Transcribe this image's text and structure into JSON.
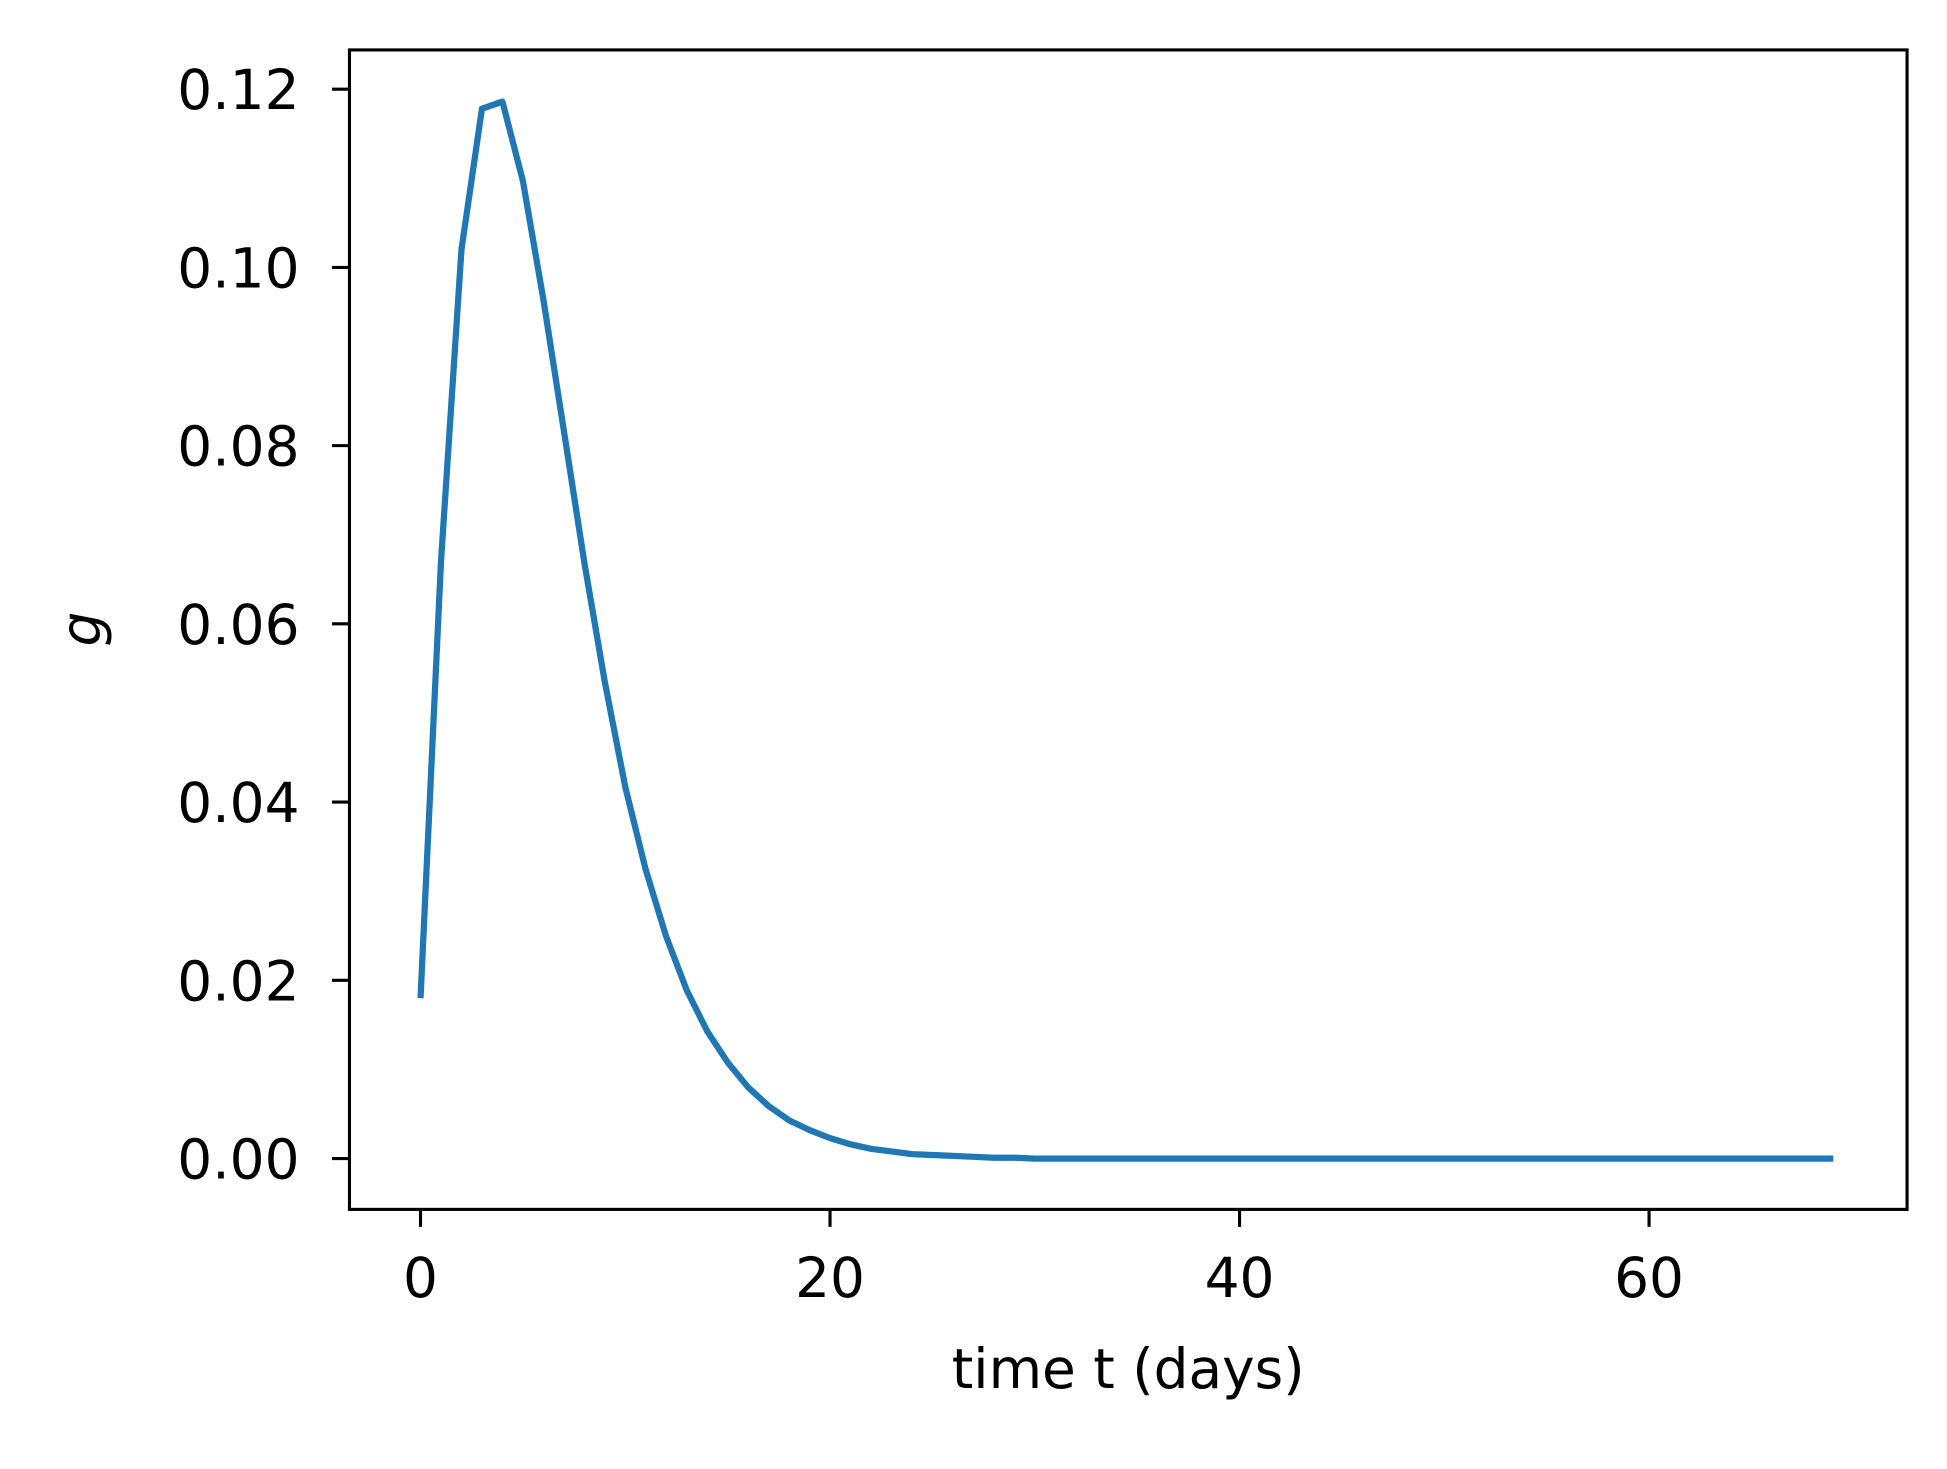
{
  "chart_data": {
    "type": "line",
    "xlabel": "time t (days)",
    "ylabel": "g",
    "color": "#1f77b4",
    "x": [
      0,
      1,
      2,
      3,
      4,
      5,
      6,
      7,
      8,
      9,
      10,
      11,
      12,
      13,
      14,
      15,
      16,
      17,
      18,
      19,
      20,
      21,
      22,
      23,
      24,
      25,
      26,
      27,
      28,
      29,
      30,
      31,
      32,
      33,
      34,
      35,
      36,
      37,
      38,
      39,
      40,
      41,
      42,
      43,
      44,
      45,
      46,
      47,
      48,
      49,
      50,
      51,
      52,
      53,
      54,
      55,
      56,
      57,
      58,
      59,
      60,
      61,
      62,
      63,
      64,
      65,
      66,
      67,
      68,
      69
    ],
    "values": [
      0.018,
      0.067,
      0.102,
      0.1178,
      0.1186,
      0.1097,
      0.0964,
      0.0817,
      0.0669,
      0.0535,
      0.0417,
      0.0324,
      0.0249,
      0.0189,
      0.0143,
      0.0108,
      0.008,
      0.0059,
      0.0043,
      0.0032,
      0.0023,
      0.0016,
      0.0011,
      0.0008,
      0.0005,
      0.0004,
      0.0003,
      0.0002,
      0.0001,
      0.0001,
      0,
      0,
      0,
      0,
      0,
      0,
      0,
      0,
      0,
      0,
      0,
      0,
      0,
      0,
      0,
      0,
      0,
      0,
      0,
      0,
      0,
      0,
      0,
      0,
      0,
      0,
      0,
      0,
      0,
      0,
      0,
      0,
      0,
      0,
      0,
      0,
      0,
      0,
      0,
      0
    ],
    "xlim": [
      -3.47,
      72.6
    ],
    "ylim": [
      -0.0057,
      0.1244
    ],
    "xticks": [
      0,
      20,
      40,
      60
    ],
    "yticks": [
      {
        "value": 0,
        "label": "0.00"
      },
      {
        "value": 0.02,
        "label": "0.02"
      },
      {
        "value": 0.04,
        "label": "0.04"
      },
      {
        "value": 0.06,
        "label": "0.06"
      },
      {
        "value": 0.08,
        "label": "0.08"
      },
      {
        "value": 0.1,
        "label": "0.10"
      },
      {
        "value": 0.12,
        "label": "0.12"
      }
    ]
  }
}
